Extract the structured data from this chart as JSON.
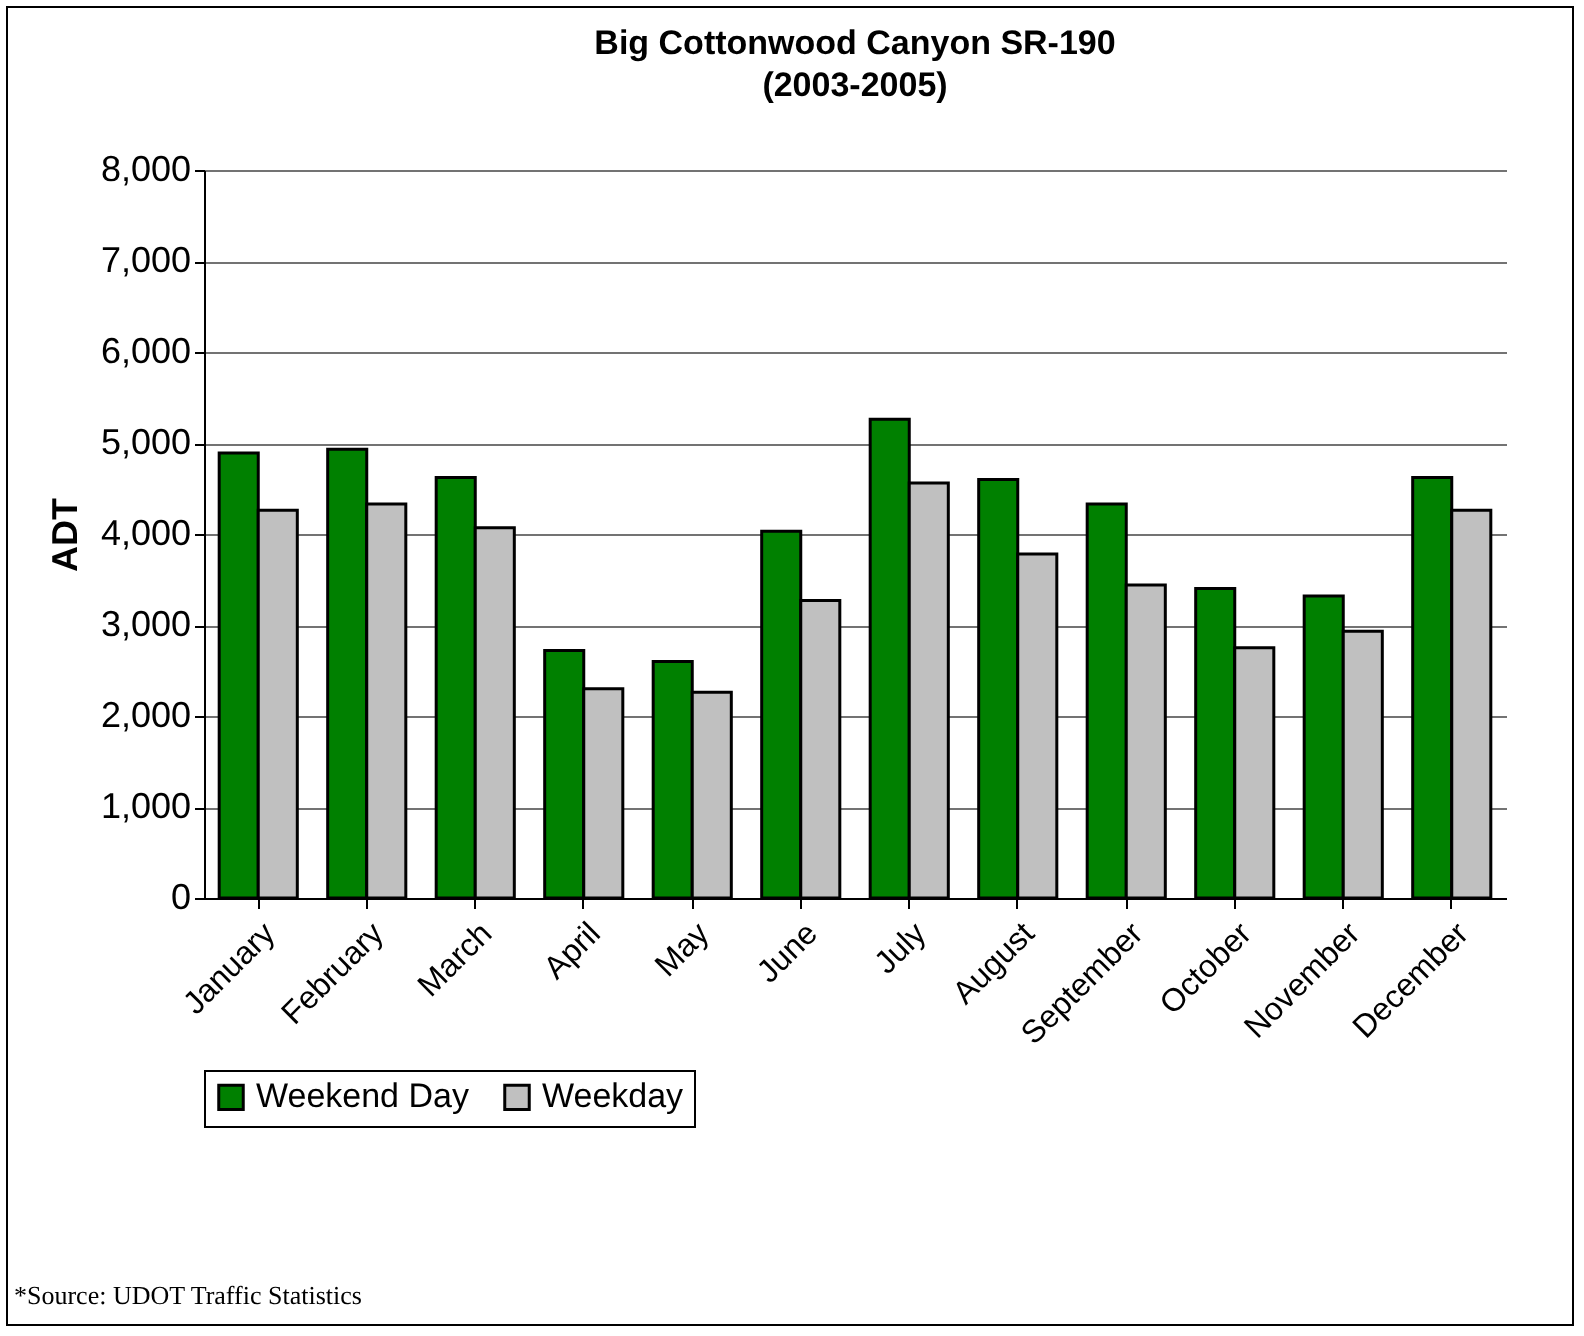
{
  "chart_data": {
    "type": "bar",
    "title": "Big Cottonwood Canyon SR-190",
    "subtitle": "(2003-2005)",
    "ylabel": "ADT",
    "categories": [
      "January",
      "February",
      "March",
      "April",
      "May",
      "June",
      "July",
      "August",
      "September",
      "October",
      "November",
      "December"
    ],
    "series": [
      {
        "name": "Weekend Day",
        "color": "#008000",
        "values": [
          4890,
          4930,
          4620,
          2720,
          2600,
          4030,
          5260,
          4600,
          4330,
          3400,
          3320,
          4620
        ]
      },
      {
        "name": "Weekday",
        "color": "#c0c0c0",
        "values": [
          4260,
          4330,
          4070,
          2300,
          2260,
          3270,
          4560,
          3780,
          3440,
          2750,
          2930,
          4260
        ]
      }
    ],
    "ylim": [
      0,
      8000
    ],
    "yticks": [
      {
        "value": 0,
        "label": "0"
      },
      {
        "value": 1000,
        "label": "1,000"
      },
      {
        "value": 2000,
        "label": "2,000"
      },
      {
        "value": 3000,
        "label": "3,000"
      },
      {
        "value": 4000,
        "label": "4,000"
      },
      {
        "value": 5000,
        "label": "5,000"
      },
      {
        "value": 6000,
        "label": "6,000"
      },
      {
        "value": 7000,
        "label": "7,000"
      },
      {
        "value": 8000,
        "label": "8,000"
      }
    ],
    "grid": "y",
    "legend": "bottom",
    "annotations": [
      "*Source: UDOT Traffic Statistics"
    ]
  }
}
